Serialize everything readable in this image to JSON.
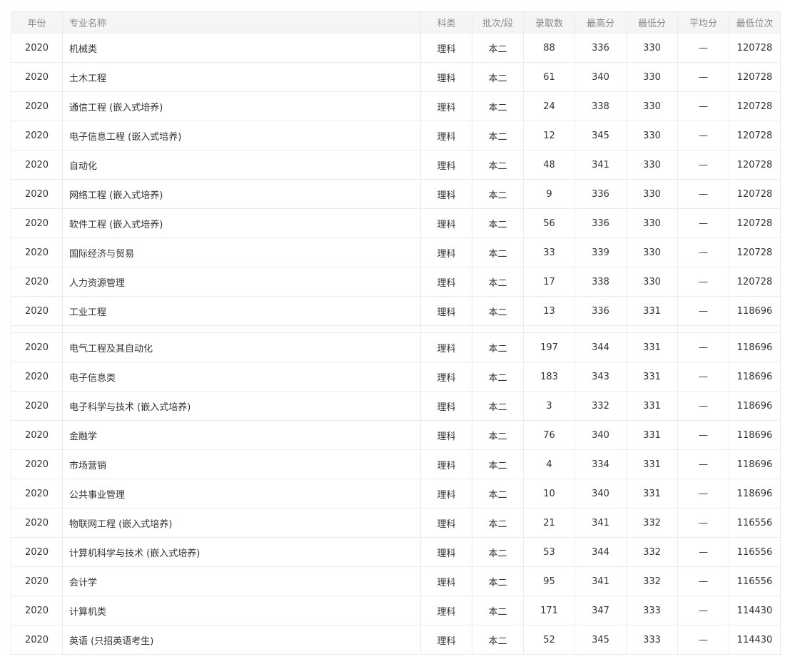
{
  "headers": [
    "年份",
    "专业名称",
    "科类",
    "批次/段",
    "录取数",
    "最高分",
    "最低分",
    "平均分",
    "最低位次"
  ],
  "rows": [
    [
      "2020",
      "机械类",
      "理科",
      "本二",
      "88",
      "336",
      "330",
      "—",
      "120728"
    ],
    [
      "2020",
      "土木工程",
      "理科",
      "本二",
      "61",
      "340",
      "330",
      "—",
      "120728"
    ],
    [
      "2020",
      "通信工程 (嵌入式培养)",
      "理科",
      "本二",
      "24",
      "338",
      "330",
      "—",
      "120728"
    ],
    [
      "2020",
      "电子信息工程 (嵌入式培养)",
      "理科",
      "本二",
      "12",
      "345",
      "330",
      "—",
      "120728"
    ],
    [
      "2020",
      "自动化",
      "理科",
      "本二",
      "48",
      "341",
      "330",
      "—",
      "120728"
    ],
    [
      "2020",
      "网络工程 (嵌入式培养)",
      "理科",
      "本二",
      "9",
      "336",
      "330",
      "—",
      "120728"
    ],
    [
      "2020",
      "软件工程 (嵌入式培养)",
      "理科",
      "本二",
      "56",
      "336",
      "330",
      "—",
      "120728"
    ],
    [
      "2020",
      "国际经济与贸易",
      "理科",
      "本二",
      "33",
      "339",
      "330",
      "—",
      "120728"
    ],
    [
      "2020",
      "人力资源管理",
      "理科",
      "本二",
      "17",
      "338",
      "330",
      "—",
      "120728"
    ],
    [
      "2020",
      "工业工程",
      "理科",
      "本二",
      "13",
      "336",
      "331",
      "—",
      "118696"
    ],
    [
      "2020",
      "电气工程及其自动化",
      "理科",
      "本二",
      "197",
      "344",
      "331",
      "—",
      "118696"
    ],
    [
      "2020",
      "电子信息类",
      "理科",
      "本二",
      "183",
      "343",
      "331",
      "—",
      "118696"
    ],
    [
      "2020",
      "电子科学与技术 (嵌入式培养)",
      "理科",
      "本二",
      "3",
      "332",
      "331",
      "—",
      "118696"
    ],
    [
      "2020",
      "金融学",
      "理科",
      "本二",
      "76",
      "340",
      "331",
      "—",
      "118696"
    ],
    [
      "2020",
      "市场营销",
      "理科",
      "本二",
      "4",
      "334",
      "331",
      "—",
      "118696"
    ],
    [
      "2020",
      "公共事业管理",
      "理科",
      "本二",
      "10",
      "340",
      "331",
      "—",
      "118696"
    ],
    [
      "2020",
      "物联网工程 (嵌入式培养)",
      "理科",
      "本二",
      "21",
      "341",
      "332",
      "—",
      "116556"
    ],
    [
      "2020",
      "计算机科学与技术 (嵌入式培养)",
      "理科",
      "本二",
      "53",
      "344",
      "332",
      "—",
      "116556"
    ],
    [
      "2020",
      "会计学",
      "理科",
      "本二",
      "95",
      "341",
      "332",
      "—",
      "116556"
    ],
    [
      "2020",
      "计算机类",
      "理科",
      "本二",
      "171",
      "347",
      "333",
      "—",
      "114430"
    ],
    [
      "2020",
      "英语 (只招英语考生)",
      "理科",
      "本二",
      "52",
      "345",
      "333",
      "—",
      "114430"
    ]
  ]
}
